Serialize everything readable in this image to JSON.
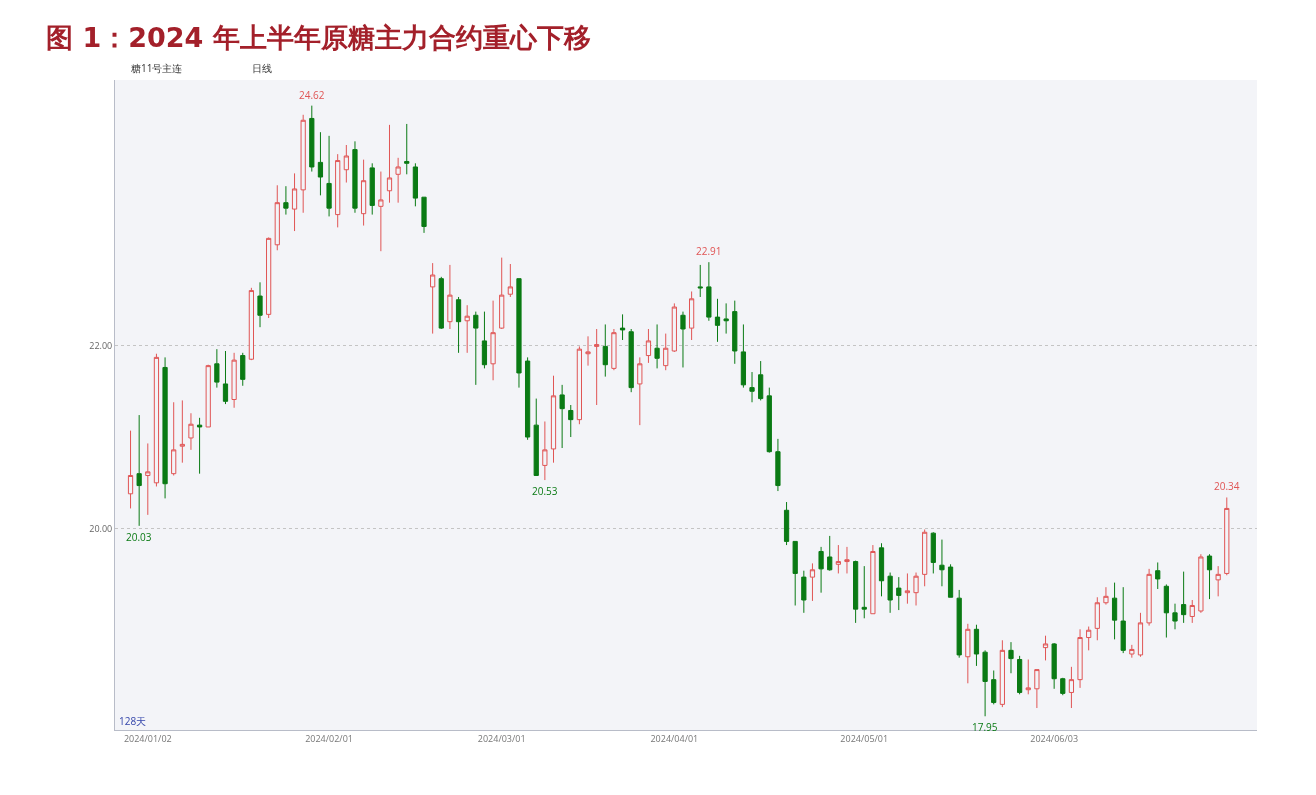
{
  "chart_data": {
    "type": "candlestick",
    "title": "图 1：2024 年上半年原糖主力合约重心下移",
    "annotations": [
      "糖11号主连",
      "日线",
      "128天",
      {
        "text": "24.62",
        "y": 24.62
      },
      {
        "text": "20.03",
        "y": 20.03
      },
      {
        "text": "20.53",
        "y": 20.53
      },
      {
        "text": "22.91",
        "y": 22.91
      },
      {
        "text": "17.95",
        "y": 17.95
      },
      {
        "text": "20.34",
        "y": 20.34
      }
    ],
    "categories": [
      null,
      null,
      "2024/01/02",
      null,
      null,
      null,
      null,
      null,
      null,
      null,
      null,
      null,
      null,
      null,
      null,
      null,
      null,
      null,
      null,
      null,
      null,
      null,
      null,
      "2024/02/01",
      null,
      null,
      null,
      null,
      null,
      null,
      null,
      null,
      null,
      null,
      null,
      null,
      null,
      null,
      null,
      null,
      null,
      null,
      null,
      "2024/03/01",
      null,
      null,
      null,
      null,
      null,
      null,
      null,
      null,
      null,
      null,
      null,
      null,
      null,
      null,
      null,
      null,
      null,
      null,
      null,
      "2024/04/01",
      null,
      null,
      null,
      null,
      null,
      null,
      null,
      null,
      null,
      null,
      null,
      null,
      null,
      null,
      null,
      null,
      null,
      null,
      null,
      null,
      null,
      "2024/05/01",
      null,
      null,
      null,
      null,
      null,
      null,
      null,
      null,
      null,
      null,
      null,
      null,
      null,
      null,
      null,
      null,
      null,
      null,
      null,
      null,
      null,
      "2024/06/03",
      null,
      null,
      null,
      null,
      null,
      null,
      null,
      null,
      null,
      null,
      null,
      null,
      null,
      null,
      null,
      null,
      null,
      null,
      null,
      null
    ],
    "ohlc": [
      [
        20.38,
        21.07,
        20.22,
        20.58
      ],
      [
        20.6,
        21.24,
        20.03,
        20.47
      ],
      [
        20.58,
        20.93,
        20.15,
        20.62
      ],
      [
        20.5,
        21.91,
        20.46,
        21.87
      ],
      [
        21.76,
        21.87,
        20.33,
        20.49
      ],
      [
        20.6,
        21.38,
        20.58,
        20.86
      ],
      [
        20.9,
        21.4,
        20.72,
        20.92
      ],
      [
        20.99,
        21.26,
        20.86,
        21.14
      ],
      [
        21.13,
        21.21,
        20.6,
        21.11
      ],
      [
        21.11,
        21.79,
        21.11,
        21.78
      ],
      [
        21.8,
        21.96,
        21.54,
        21.6
      ],
      [
        21.58,
        21.94,
        21.36,
        21.39
      ],
      [
        21.41,
        21.92,
        21.32,
        21.84
      ],
      [
        21.89,
        21.92,
        21.56,
        21.63
      ],
      [
        21.85,
        22.63,
        21.84,
        22.6
      ],
      [
        22.54,
        22.69,
        22.2,
        22.33
      ],
      [
        22.34,
        23.18,
        22.3,
        23.17
      ],
      [
        23.1,
        23.75,
        23.04,
        23.56
      ],
      [
        23.56,
        23.74,
        23.43,
        23.5
      ],
      [
        23.49,
        23.88,
        23.25,
        23.71
      ],
      [
        23.7,
        24.52,
        23.45,
        24.46
      ],
      [
        24.48,
        24.62,
        23.9,
        23.95
      ],
      [
        24.0,
        24.33,
        23.64,
        23.84
      ],
      [
        23.77,
        24.29,
        23.41,
        23.5
      ],
      [
        23.43,
        24.09,
        23.29,
        24.02
      ],
      [
        23.92,
        24.19,
        23.78,
        24.07
      ],
      [
        24.14,
        24.23,
        23.45,
        23.5
      ],
      [
        23.44,
        24.03,
        23.31,
        23.8
      ],
      [
        23.94,
        23.99,
        23.43,
        23.53
      ],
      [
        23.52,
        23.9,
        23.03,
        23.59
      ],
      [
        23.69,
        24.41,
        23.56,
        23.83
      ],
      [
        23.87,
        24.05,
        23.56,
        23.95
      ],
      [
        24.01,
        24.42,
        23.87,
        23.99
      ],
      [
        23.95,
        23.99,
        23.52,
        23.61
      ],
      [
        23.62,
        23.62,
        23.23,
        23.3
      ],
      [
        22.64,
        22.9,
        22.13,
        22.77
      ],
      [
        22.73,
        22.75,
        22.18,
        22.19
      ],
      [
        22.26,
        22.88,
        22.18,
        22.55
      ],
      [
        22.5,
        22.53,
        21.92,
        22.26
      ],
      [
        22.27,
        22.44,
        21.92,
        22.32
      ],
      [
        22.33,
        22.37,
        21.57,
        22.19
      ],
      [
        22.05,
        22.37,
        21.75,
        21.79
      ],
      [
        21.8,
        22.49,
        21.62,
        22.14
      ],
      [
        22.19,
        22.96,
        22.18,
        22.55
      ],
      [
        22.56,
        22.89,
        22.53,
        22.64
      ],
      [
        22.73,
        22.73,
        21.54,
        21.7
      ],
      [
        21.83,
        21.87,
        20.97,
        21.0
      ],
      [
        21.13,
        21.42,
        20.58,
        20.58
      ],
      [
        20.69,
        21.17,
        20.53,
        20.86
      ],
      [
        20.87,
        21.67,
        20.72,
        21.45
      ],
      [
        21.46,
        21.57,
        20.88,
        21.31
      ],
      [
        21.29,
        21.35,
        21.0,
        21.19
      ],
      [
        21.19,
        21.99,
        21.14,
        21.96
      ],
      [
        21.91,
        22.1,
        21.78,
        21.93
      ],
      [
        21.99,
        22.18,
        21.35,
        22.01
      ],
      [
        21.99,
        22.23,
        21.66,
        21.79
      ],
      [
        21.75,
        22.18,
        21.73,
        22.14
      ],
      [
        22.19,
        22.34,
        22.06,
        22.17
      ],
      [
        22.15,
        22.18,
        21.49,
        21.54
      ],
      [
        21.58,
        21.87,
        21.13,
        21.8
      ],
      [
        21.89,
        22.18,
        21.81,
        22.05
      ],
      [
        21.97,
        22.23,
        21.75,
        21.86
      ],
      [
        21.78,
        22.13,
        21.73,
        21.97
      ],
      [
        21.94,
        22.46,
        21.93,
        22.42
      ],
      [
        22.33,
        22.37,
        21.76,
        22.18
      ],
      [
        22.19,
        22.59,
        22.06,
        22.51
      ],
      [
        22.64,
        22.88,
        22.53,
        22.63
      ],
      [
        22.64,
        22.91,
        22.27,
        22.31
      ],
      [
        22.31,
        22.51,
        22.04,
        22.22
      ],
      [
        22.29,
        22.46,
        22.13,
        22.27
      ],
      [
        22.37,
        22.49,
        21.8,
        21.94
      ],
      [
        21.93,
        22.23,
        21.54,
        21.57
      ],
      [
        21.54,
        21.71,
        21.38,
        21.5
      ],
      [
        21.68,
        21.83,
        21.4,
        21.42
      ],
      [
        21.45,
        21.54,
        20.83,
        20.84
      ],
      [
        20.84,
        20.98,
        20.41,
        20.47
      ],
      [
        20.2,
        20.29,
        19.82,
        19.86
      ],
      [
        19.86,
        19.86,
        19.16,
        19.51
      ],
      [
        19.47,
        19.54,
        19.08,
        19.22
      ],
      [
        19.47,
        19.62,
        19.21,
        19.55
      ],
      [
        19.75,
        19.8,
        19.3,
        19.56
      ],
      [
        19.69,
        19.92,
        19.54,
        19.55
      ],
      [
        19.61,
        19.82,
        19.51,
        19.64
      ],
      [
        19.64,
        19.8,
        19.51,
        19.66
      ],
      [
        19.64,
        19.65,
        18.97,
        19.12
      ],
      [
        19.14,
        19.59,
        19.02,
        19.12
      ],
      [
        19.07,
        19.82,
        19.07,
        19.75
      ],
      [
        19.79,
        19.84,
        19.26,
        19.43
      ],
      [
        19.48,
        19.52,
        19.08,
        19.22
      ],
      [
        19.35,
        19.47,
        19.11,
        19.27
      ],
      [
        19.3,
        19.51,
        19.18,
        19.32
      ],
      [
        19.3,
        19.52,
        19.16,
        19.48
      ],
      [
        19.5,
        19.99,
        19.37,
        19.96
      ],
      [
        19.95,
        19.96,
        19.51,
        19.63
      ],
      [
        19.6,
        19.88,
        19.37,
        19.55
      ],
      [
        19.58,
        19.61,
        19.25,
        19.25
      ],
      [
        19.24,
        19.33,
        18.59,
        18.62
      ],
      [
        18.6,
        18.96,
        18.31,
        18.9
      ],
      [
        18.9,
        18.95,
        18.5,
        18.63
      ],
      [
        18.65,
        18.67,
        17.95,
        18.33
      ],
      [
        18.35,
        18.45,
        18.08,
        18.1
      ],
      [
        18.08,
        18.78,
        18.05,
        18.67
      ],
      [
        18.67,
        18.76,
        18.42,
        18.58
      ],
      [
        18.57,
        18.61,
        18.19,
        18.21
      ],
      [
        18.24,
        18.57,
        18.19,
        18.26
      ],
      [
        18.25,
        18.46,
        18.04,
        18.46
      ],
      [
        18.7,
        18.83,
        18.56,
        18.74
      ],
      [
        18.74,
        18.75,
        18.25,
        18.36
      ],
      [
        18.36,
        18.37,
        18.18,
        18.2
      ],
      [
        18.21,
        18.49,
        18.04,
        18.35
      ],
      [
        18.35,
        18.9,
        18.26,
        18.81
      ],
      [
        18.81,
        18.93,
        18.67,
        18.89
      ],
      [
        18.91,
        19.25,
        18.78,
        19.19
      ],
      [
        19.19,
        19.36,
        19.17,
        19.26
      ],
      [
        19.24,
        19.41,
        18.79,
        19.0
      ],
      [
        18.99,
        19.36,
        18.64,
        18.67
      ],
      [
        18.63,
        18.73,
        18.59,
        18.68
      ],
      [
        18.62,
        19.08,
        18.6,
        18.97
      ],
      [
        18.97,
        19.56,
        18.94,
        19.5
      ],
      [
        19.54,
        19.63,
        19.34,
        19.45
      ],
      [
        19.37,
        19.39,
        18.81,
        19.08
      ],
      [
        19.08,
        19.18,
        18.9,
        18.99
      ],
      [
        19.17,
        19.53,
        18.97,
        19.06
      ],
      [
        19.04,
        19.22,
        18.97,
        19.16
      ],
      [
        19.1,
        19.72,
        19.08,
        19.69
      ],
      [
        19.7,
        19.72,
        19.23,
        19.55
      ],
      [
        19.44,
        19.59,
        19.26,
        19.5
      ],
      [
        19.51,
        20.34,
        19.49,
        20.22
      ]
    ],
    "colors": [
      "#e05555",
      "#0a7a14",
      "#e05555",
      "#e05555",
      "#0a7a14",
      "#e05555",
      "#e05555",
      "#e05555",
      "#0a7a14",
      "#e05555",
      "#0a7a14",
      "#0a7a14",
      "#e05555",
      "#0a7a14",
      "#e05555",
      "#0a7a14",
      "#e05555",
      "#e05555",
      "#0a7a14",
      "#e05555",
      "#e05555",
      "#0a7a14",
      "#0a7a14",
      "#0a7a14",
      "#e05555",
      "#e05555",
      "#0a7a14",
      "#e05555",
      "#0a7a14",
      "#e05555",
      "#e05555",
      "#e05555",
      "#0a7a14",
      "#0a7a14",
      "#0a7a14",
      "#e05555",
      "#0a7a14",
      "#e05555",
      "#0a7a14",
      "#e05555",
      "#0a7a14",
      "#0a7a14",
      "#e05555",
      "#e05555",
      "#e05555",
      "#0a7a14",
      "#0a7a14",
      "#0a7a14",
      "#e05555",
      "#e05555",
      "#0a7a14",
      "#0a7a14",
      "#e05555",
      "#e05555",
      "#e05555",
      "#0a7a14",
      "#e05555",
      "#0a7a14",
      "#0a7a14",
      "#e05555",
      "#e05555",
      "#0a7a14",
      "#e05555",
      "#e05555",
      "#0a7a14",
      "#e05555",
      "#0a7a14",
      "#0a7a14",
      "#0a7a14",
      "#0a7a14",
      "#0a7a14",
      "#0a7a14",
      "#0a7a14",
      "#0a7a14",
      "#0a7a14",
      "#0a7a14",
      "#0a7a14",
      "#0a7a14",
      "#0a7a14",
      "#e05555",
      "#0a7a14",
      "#0a7a14",
      "#e05555",
      "#e05555",
      "#0a7a14",
      "#0a7a14",
      "#e05555",
      "#0a7a14",
      "#0a7a14",
      "#0a7a14",
      "#e05555",
      "#e05555",
      "#e05555",
      "#0a7a14",
      "#0a7a14",
      "#0a7a14",
      "#0a7a14",
      "#e05555",
      "#0a7a14",
      "#0a7a14",
      "#0a7a14",
      "#e05555",
      "#0a7a14",
      "#0a7a14",
      "#e05555",
      "#e05555",
      "#e05555",
      "#0a7a14",
      "#0a7a14",
      "#e05555",
      "#e05555",
      "#e05555",
      "#e05555",
      "#e05555",
      "#0a7a14",
      "#0a7a14",
      "#e05555",
      "#e05555",
      "#e05555",
      "#0a7a14",
      "#0a7a14",
      "#0a7a14",
      "#0a7a14",
      "#e05555",
      "#e05555",
      "#0a7a14",
      "#e05555",
      "#e05555"
    ],
    "ylim": [
      17.8,
      24.9
    ],
    "yticks": [
      {
        "value": 20,
        "label": "20.00"
      },
      {
        "value": 22,
        "label": "22.00"
      }
    ],
    "grid": "y"
  }
}
